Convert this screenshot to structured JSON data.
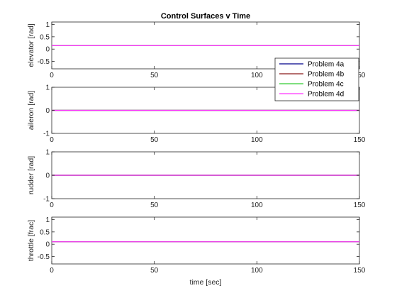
{
  "chart_data": {
    "type": "line",
    "title": "Control Surfaces v Time",
    "xlabel": "time [sec]",
    "xlim": [
      0,
      150
    ],
    "xticks": [
      "0",
      "50",
      "100",
      "150"
    ],
    "legend": {
      "placement": "overlapping first panel, right",
      "entries": [
        "Problem 4a",
        "Problem 4b",
        "Problem 4c",
        "Problem 4d"
      ]
    },
    "series_colors": [
      "#00008b",
      "#8b1a1a",
      "#33cc33",
      "#ff33ff"
    ],
    "panels": [
      {
        "ylabel": "elevator [rad]",
        "ylim": [
          -0.8,
          1.1
        ],
        "yticks": [
          {
            "v": 1,
            "label": "1"
          },
          {
            "v": 0.5,
            "label": "0.5"
          },
          {
            "v": 0,
            "label": "0"
          },
          {
            "v": -0.5,
            "label": "-0.5"
          }
        ],
        "series": [
          {
            "name": "Problem 4a",
            "x": [
              0,
              150
            ],
            "y": [
              0.14,
              0.14
            ]
          },
          {
            "name": "Problem 4b",
            "x": [
              0,
              150
            ],
            "y": [
              0.14,
              0.14
            ]
          },
          {
            "name": "Problem 4c",
            "x": [
              0,
              150
            ],
            "y": [
              0.14,
              0.14
            ]
          },
          {
            "name": "Problem 4d",
            "x": [
              0,
              150
            ],
            "y": [
              0.14,
              0.14
            ]
          }
        ]
      },
      {
        "ylabel": "aileron [rad]",
        "ylim": [
          -1,
          1
        ],
        "yticks": [
          {
            "v": 1,
            "label": "1"
          },
          {
            "v": 0,
            "label": "0"
          },
          {
            "v": -1,
            "label": "-1"
          }
        ],
        "series": [
          {
            "name": "Problem 4a",
            "x": [
              0,
              150
            ],
            "y": [
              0,
              0
            ]
          },
          {
            "name": "Problem 4b",
            "x": [
              0,
              150
            ],
            "y": [
              0,
              0
            ]
          },
          {
            "name": "Problem 4c",
            "x": [
              0,
              150
            ],
            "y": [
              0,
              0
            ]
          },
          {
            "name": "Problem 4d",
            "x": [
              0,
              150
            ],
            "y": [
              0,
              0
            ]
          }
        ]
      },
      {
        "ylabel": "rudder [rad]",
        "ylim": [
          -1,
          1
        ],
        "yticks": [
          {
            "v": 1,
            "label": "1"
          },
          {
            "v": 0,
            "label": "0"
          },
          {
            "v": -1,
            "label": "-1"
          }
        ],
        "series": [
          {
            "name": "Problem 4a",
            "x": [
              0,
              150
            ],
            "y": [
              0,
              0
            ]
          },
          {
            "name": "Problem 4b",
            "x": [
              0,
              150
            ],
            "y": [
              0,
              0
            ]
          },
          {
            "name": "Problem 4c",
            "x": [
              0,
              150
            ],
            "y": [
              0,
              0
            ]
          },
          {
            "name": "Problem 4d",
            "x": [
              0,
              150
            ],
            "y": [
              0,
              0
            ]
          }
        ]
      },
      {
        "ylabel": "throttle [frac]",
        "ylim": [
          -0.8,
          1.1
        ],
        "yticks": [
          {
            "v": 1,
            "label": "1"
          },
          {
            "v": 0.5,
            "label": "0.5"
          },
          {
            "v": 0,
            "label": "0"
          },
          {
            "v": -0.5,
            "label": "-0.5"
          }
        ],
        "series": [
          {
            "name": "Problem 4a",
            "x": [
              0,
              150
            ],
            "y": [
              0.1,
              0.1
            ]
          },
          {
            "name": "Problem 4b",
            "x": [
              0,
              150
            ],
            "y": [
              0.1,
              0.1
            ]
          },
          {
            "name": "Problem 4c",
            "x": [
              0,
              150
            ],
            "y": [
              0.1,
              0.1
            ]
          },
          {
            "name": "Problem 4d",
            "x": [
              0,
              150
            ],
            "y": [
              0.1,
              0.1
            ]
          }
        ]
      }
    ]
  }
}
